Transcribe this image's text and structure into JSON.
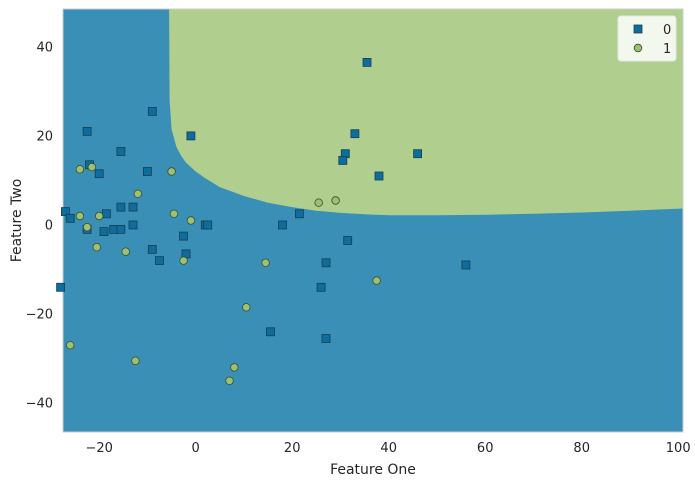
{
  "chart_data": {
    "type": "scatter",
    "title": "",
    "xlabel": "Feature One",
    "ylabel": "Feature Two",
    "xlim": [
      -27.5,
      101
    ],
    "ylim": [
      -46.5,
      48.5
    ],
    "xticks": [
      -20,
      0,
      20,
      40,
      60,
      80,
      100
    ],
    "yticks": [
      -40,
      -20,
      0,
      20,
      40
    ],
    "xtick_labels": [
      "−20",
      "0",
      "20",
      "40",
      "60",
      "80",
      "100"
    ],
    "ytick_labels": [
      "−40",
      "−20",
      "0",
      "20",
      "40"
    ],
    "grid": false,
    "legend_position": "top-right",
    "background_regions": [
      {
        "class": "0",
        "color": "#3a8fb7"
      },
      {
        "class": "1",
        "color": "#b0cf8f"
      }
    ],
    "decision_boundary": {
      "class_1_region": "top-right",
      "x": [
        -5.5,
        -5.4,
        -5,
        -4,
        -3,
        -2,
        0,
        2,
        5,
        10,
        15,
        20,
        25,
        30,
        35,
        40,
        50,
        60,
        70,
        80,
        90,
        101
      ],
      "y": [
        48.5,
        28,
        21.5,
        17.5,
        15.5,
        14,
        12,
        10.5,
        8.5,
        6.5,
        5,
        4,
        3.2,
        2.7,
        2.4,
        2.2,
        2.2,
        2.3,
        2.5,
        2.8,
        3.2,
        3.7
      ]
    },
    "series": [
      {
        "name": "0",
        "marker": "square",
        "color": "#0b6e9e",
        "points": [
          [
            35.5,
            36.5
          ],
          [
            -9,
            25.5
          ],
          [
            -22.5,
            21
          ],
          [
            -1,
            20
          ],
          [
            33,
            20.5
          ],
          [
            -15.5,
            16.5
          ],
          [
            31,
            16
          ],
          [
            46,
            16
          ],
          [
            30.5,
            14.5
          ],
          [
            -22,
            13.5
          ],
          [
            -10,
            12
          ],
          [
            -20,
            11.5
          ],
          [
            38,
            11
          ],
          [
            -27,
            3
          ],
          [
            -15.5,
            4
          ],
          [
            -13,
            4
          ],
          [
            -18.5,
            2.5
          ],
          [
            21.5,
            2.5
          ],
          [
            -26,
            1.5
          ],
          [
            -13,
            0
          ],
          [
            2,
            0
          ],
          [
            2.5,
            0
          ],
          [
            18,
            0
          ],
          [
            -22.5,
            -1
          ],
          [
            -17,
            -1
          ],
          [
            -15.5,
            -1
          ],
          [
            -19,
            -1.5
          ],
          [
            -2.5,
            -2.5
          ],
          [
            31.5,
            -3.5
          ],
          [
            -9,
            -5.5
          ],
          [
            -2,
            -6.5
          ],
          [
            -7.5,
            -8
          ],
          [
            27,
            -8.5
          ],
          [
            56,
            -9
          ],
          [
            -28,
            -14
          ],
          [
            26,
            -14
          ],
          [
            15.5,
            -24
          ],
          [
            27,
            -25.5
          ]
        ]
      },
      {
        "name": "1",
        "marker": "circle",
        "color": "#9cc170",
        "points": [
          [
            -24,
            12.5
          ],
          [
            -21.5,
            13
          ],
          [
            -5,
            12
          ],
          [
            -12,
            7
          ],
          [
            29,
            5.5
          ],
          [
            25.5,
            5
          ],
          [
            -4.5,
            2.5
          ],
          [
            -20,
            2
          ],
          [
            -24,
            2
          ],
          [
            -1,
            1
          ],
          [
            -22.5,
            -0.5
          ],
          [
            -20.5,
            -5
          ],
          [
            -14.5,
            -6
          ],
          [
            -2.5,
            -8
          ],
          [
            14.5,
            -8.5
          ],
          [
            37.5,
            -12.5
          ],
          [
            10.5,
            -18.5
          ],
          [
            -26,
            -27
          ],
          [
            -12.5,
            -30.5
          ],
          [
            8,
            -32
          ],
          [
            7,
            -35
          ]
        ]
      }
    ]
  }
}
